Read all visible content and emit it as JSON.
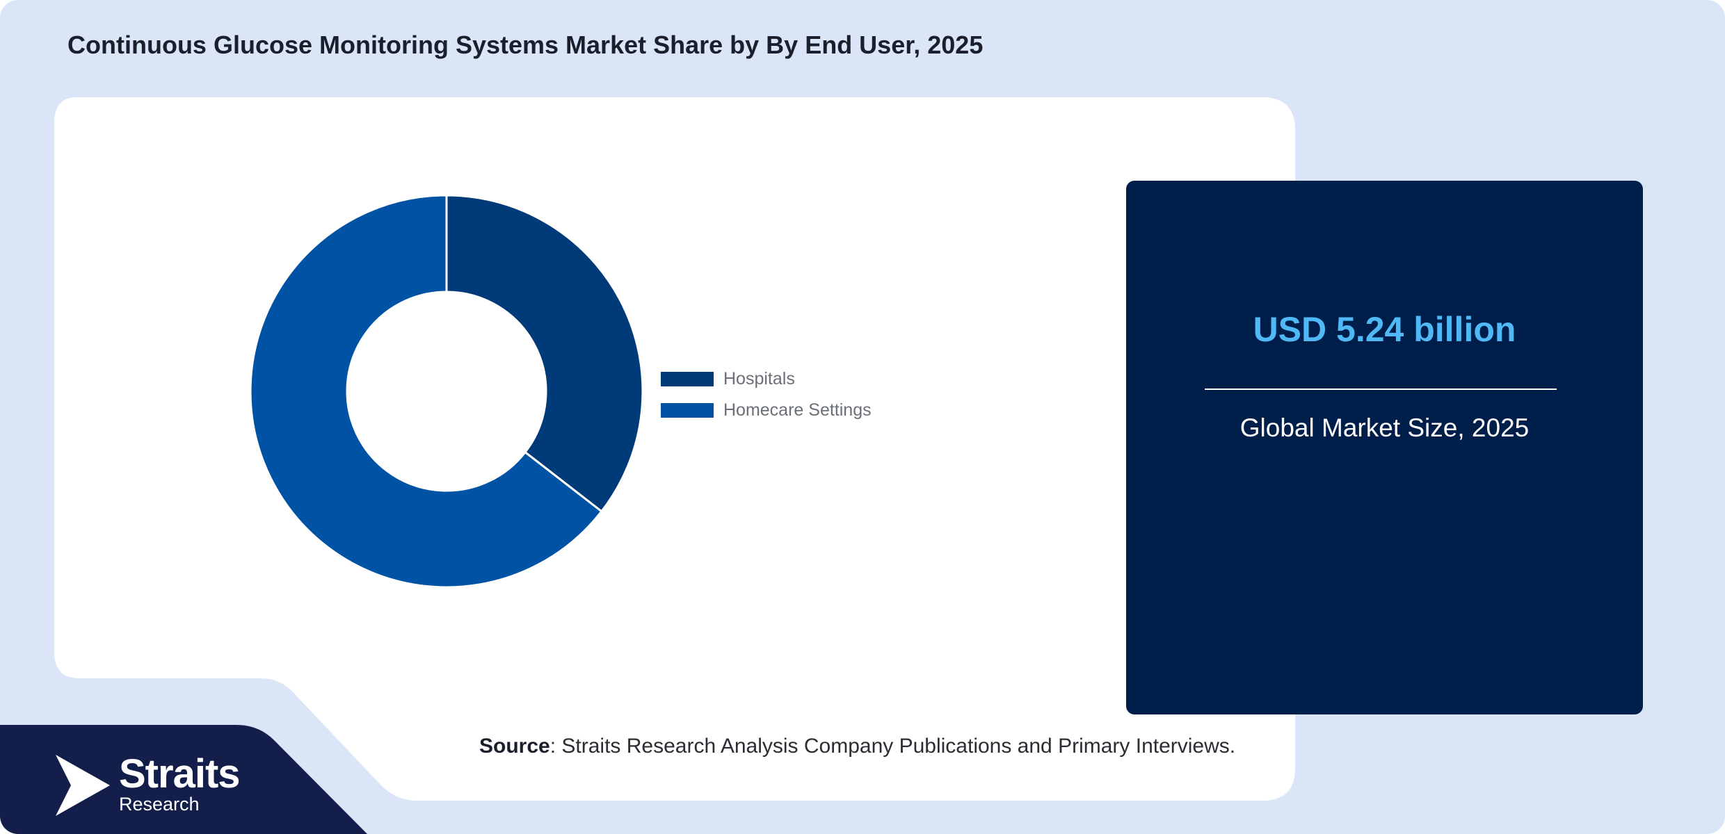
{
  "title": "Continuous Glucose Monitoring Systems Market Share by By End User, 2025",
  "chart_data": {
    "type": "pie",
    "style": "donut",
    "categories": [
      "Hospitals",
      "Homecare Settings"
    ],
    "values": [
      35.5,
      64.5
    ],
    "unit": "%",
    "colors": [
      "#003a78",
      "#0052a5"
    ],
    "legend_position": "right",
    "title": "Continuous Glucose Monitoring Systems Market Share by By End User, 2025"
  },
  "market_card": {
    "value": "USD 5.24 billion",
    "label": "Global Market Size, 2025"
  },
  "source": {
    "label": "Source",
    "text": ": Straits Research Analysis Company Publications and Primary Interviews."
  },
  "brand": {
    "name": "Straits",
    "sub": "Research",
    "logo_icon": "straits-logo-icon"
  },
  "colors": {
    "page_background": "#dae6f8",
    "panel": "#ffffff",
    "card": "#001e4a",
    "accent": "#4fb8f5",
    "footer": "#131f4a"
  }
}
